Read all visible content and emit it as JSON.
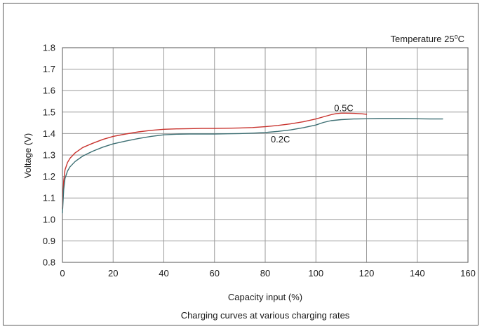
{
  "chart_data": {
    "type": "line",
    "title": "",
    "caption": "Charging curves at various charging rates",
    "annotation": {
      "prefix": "Temperature 25",
      "superscript": "o",
      "suffix": "C"
    },
    "xlabel": "Capacity input (%)",
    "ylabel": "Voltage (V)",
    "xlim": [
      0,
      160
    ],
    "ylim": [
      0.8,
      1.8
    ],
    "xticks": [
      0,
      20,
      40,
      60,
      80,
      100,
      120,
      140,
      160
    ],
    "yticks": [
      0.8,
      0.9,
      1.0,
      1.1,
      1.2,
      1.3,
      1.4,
      1.5,
      1.6,
      1.7,
      1.8
    ],
    "grid": true,
    "series": [
      {
        "name": "0.5C",
        "color": "#c8332e",
        "x": [
          0,
          0.5,
          1,
          2,
          3,
          5,
          8,
          12,
          16,
          20,
          25,
          30,
          35,
          40,
          45,
          50,
          55,
          60,
          65,
          70,
          75,
          80,
          85,
          90,
          95,
          100,
          103,
          106,
          108,
          110,
          112,
          115,
          118,
          120
        ],
        "y": [
          1.05,
          1.18,
          1.23,
          1.265,
          1.285,
          1.31,
          1.335,
          1.355,
          1.373,
          1.387,
          1.398,
          1.408,
          1.415,
          1.42,
          1.422,
          1.423,
          1.424,
          1.424,
          1.425,
          1.426,
          1.428,
          1.432,
          1.438,
          1.445,
          1.455,
          1.468,
          1.478,
          1.488,
          1.493,
          1.495,
          1.495,
          1.494,
          1.492,
          1.49
        ]
      },
      {
        "name": "0.2C",
        "color": "#3d6f73",
        "x": [
          0,
          0.5,
          1,
          2,
          3,
          5,
          8,
          12,
          16,
          20,
          25,
          30,
          35,
          40,
          45,
          50,
          55,
          60,
          65,
          70,
          75,
          80,
          85,
          90,
          95,
          100,
          103,
          106,
          110,
          115,
          120,
          125,
          130,
          135,
          140,
          145,
          150
        ],
        "y": [
          1.03,
          1.14,
          1.19,
          1.225,
          1.245,
          1.27,
          1.295,
          1.318,
          1.337,
          1.352,
          1.365,
          1.377,
          1.387,
          1.394,
          1.397,
          1.398,
          1.398,
          1.398,
          1.399,
          1.4,
          1.402,
          1.405,
          1.41,
          1.417,
          1.427,
          1.44,
          1.452,
          1.46,
          1.465,
          1.468,
          1.469,
          1.47,
          1.47,
          1.47,
          1.469,
          1.468,
          1.468
        ]
      }
    ],
    "labels": [
      {
        "text": "0.5C",
        "x": 111,
        "y": 1.52
      },
      {
        "text": "0.2C",
        "x": 86,
        "y": 1.375
      }
    ]
  }
}
